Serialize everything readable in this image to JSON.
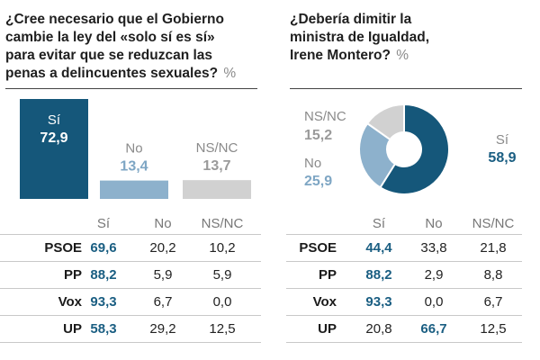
{
  "colors": {
    "yes": "#15577a",
    "no": "#8db1cc",
    "nsnc": "#d1d1d1",
    "yes_text": "#1a5e82",
    "no_text": "#7ea6c4",
    "nsnc_text": "#9a9a9a"
  },
  "left": {
    "title_lines": [
      "¿Cree necesario que el Gobierno",
      "cambie la ley del «solo sí es sí»",
      "para evitar que se reduzcan las",
      "penas a delincuentes sexuales?"
    ],
    "unit": "%",
    "table": {
      "headers": [
        "Sí",
        "No",
        "NS/NC"
      ],
      "rows": [
        {
          "party": "PSOE",
          "values": [
            "69,6",
            "20,2",
            "10,2"
          ],
          "highlight": [
            0
          ]
        },
        {
          "party": "PP",
          "values": [
            "88,2",
            "5,9",
            "5,9"
          ],
          "highlight": [
            0
          ]
        },
        {
          "party": "Vox",
          "values": [
            "93,3",
            "6,7",
            "0,0"
          ],
          "highlight": [
            0
          ]
        },
        {
          "party": "UP",
          "values": [
            "58,3",
            "29,2",
            "12,5"
          ],
          "highlight": [
            0
          ]
        }
      ]
    }
  },
  "right": {
    "title_lines": [
      "¿Debería dimitir la",
      "ministra de Igualdad,",
      "Irene Montero?"
    ],
    "unit": "%",
    "table": {
      "headers": [
        "Sí",
        "No",
        "NS/NC"
      ],
      "rows": [
        {
          "party": "PSOE",
          "values": [
            "44,4",
            "33,8",
            "21,8"
          ],
          "highlight": [
            0
          ]
        },
        {
          "party": "PP",
          "values": [
            "88,2",
            "2,9",
            "8,8"
          ],
          "highlight": [
            0
          ]
        },
        {
          "party": "Vox",
          "values": [
            "93,3",
            "0,0",
            "6,7"
          ],
          "highlight": [
            0
          ]
        },
        {
          "party": "UP",
          "values": [
            "20,8",
            "66,7",
            "12,5"
          ],
          "highlight": [
            1
          ]
        }
      ]
    }
  },
  "chart_data": [
    {
      "type": "bar",
      "categories": [
        "Sí",
        "No",
        "NS/NC"
      ],
      "values": [
        72.9,
        13.4,
        13.7
      ],
      "value_labels": [
        "72,9",
        "13,4",
        "13,7"
      ],
      "title": "¿Cree necesario que el Gobierno cambie la ley del «solo sí es sí» para evitar que se reduzcan las penas a delincuentes sexuales?",
      "unit": "%"
    },
    {
      "type": "pie",
      "donut": true,
      "categories": [
        "Sí",
        "No",
        "NS/NC"
      ],
      "values": [
        58.9,
        25.9,
        15.2
      ],
      "value_labels": [
        "58,9",
        "25,9",
        "15,2"
      ],
      "title": "¿Debería dimitir la ministra de Igualdad, Irene Montero?",
      "unit": "%"
    }
  ]
}
